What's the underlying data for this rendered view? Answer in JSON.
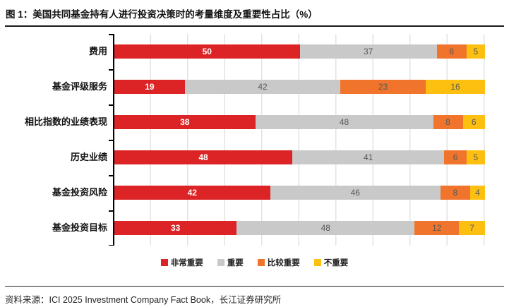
{
  "header": {
    "title": "图 1：美国共同基金持有人进行投资决策时的考量维度及重要性占比（%）"
  },
  "chart_data": {
    "type": "bar",
    "orientation": "horizontal",
    "stacked": true,
    "categories": [
      "费用",
      "基金评级服务",
      "相比指数的业绩表现",
      "历史业绩",
      "基金投资风险",
      "基金投资目标"
    ],
    "series": [
      {
        "name": "非常重要",
        "color": "#DC2426",
        "label_color": "#ffffff",
        "label_bold": true,
        "values": [
          50,
          19,
          38,
          48,
          42,
          33
        ]
      },
      {
        "name": "重要",
        "color": "#C9C9C9",
        "label_color": "#595959",
        "label_bold": false,
        "values": [
          37,
          42,
          48,
          41,
          46,
          48
        ]
      },
      {
        "name": "比较重要",
        "color": "#F0742B",
        "label_color": "#595959",
        "label_bold": false,
        "values": [
          8,
          23,
          8,
          6,
          8,
          12
        ]
      },
      {
        "name": "不重要",
        "color": "#FDC010",
        "label_color": "#595959",
        "label_bold": false,
        "values": [
          5,
          16,
          6,
          5,
          4,
          7
        ]
      }
    ],
    "xlim": [
      0,
      100
    ],
    "gridline_interval": 10,
    "grid": true,
    "value_labels": "inside",
    "legend_position": "bottom",
    "axis_color": "#000000",
    "gridline_color": "#E3E3E3"
  },
  "footer": {
    "source": "资料来源：ICI 2025 Investment Company Fact Book，长江证券研究所"
  }
}
